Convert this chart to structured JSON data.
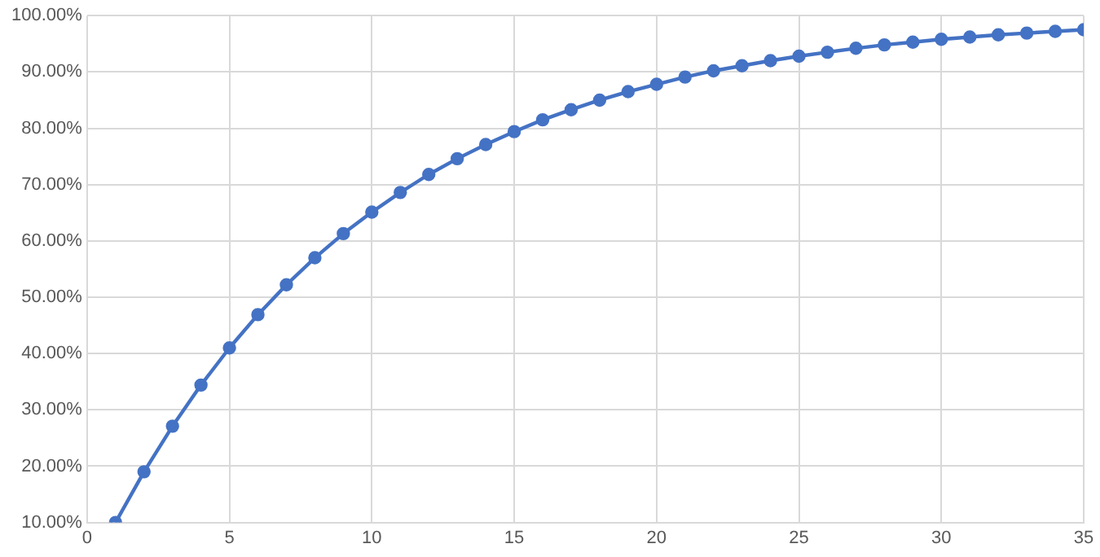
{
  "chart_data": {
    "type": "line",
    "x": [
      1,
      2,
      3,
      4,
      5,
      6,
      7,
      8,
      9,
      10,
      11,
      12,
      13,
      14,
      15,
      16,
      17,
      18,
      19,
      20,
      21,
      22,
      23,
      24,
      25,
      26,
      27,
      28,
      29,
      30,
      31,
      32,
      33,
      34,
      35
    ],
    "series": [
      {
        "color": "#4472c4",
        "values": [
          10,
          19,
          27.1,
          34.4,
          41,
          46.9,
          52.2,
          57,
          61.3,
          65.1,
          68.6,
          71.8,
          74.6,
          77.1,
          79.4,
          81.5,
          83.3,
          85,
          86.5,
          87.8,
          89.1,
          90.2,
          91.1,
          92,
          92.8,
          93.5,
          94.2,
          94.8,
          95.3,
          95.8,
          96.2,
          96.6,
          96.9,
          97.2,
          97.5
        ]
      }
    ],
    "xlim": [
      0,
      35
    ],
    "xticks": [
      0,
      5,
      10,
      15,
      20,
      25,
      30,
      35
    ],
    "ylim": [
      10,
      100
    ],
    "yticks": [
      {
        "value": 10,
        "label": "10.00%"
      },
      {
        "value": 20,
        "label": "20.00%"
      },
      {
        "value": 30,
        "label": "30.00%"
      },
      {
        "value": 40,
        "label": "40.00%"
      },
      {
        "value": 50,
        "label": "50.00%"
      },
      {
        "value": 60,
        "label": "60.00%"
      },
      {
        "value": 70,
        "label": "70.00%"
      },
      {
        "value": 80,
        "label": "80.00%"
      },
      {
        "value": 90,
        "label": "90.00%"
      },
      {
        "value": 100,
        "label": "100.00%"
      }
    ],
    "grid": true,
    "legend": false,
    "marker": "circle",
    "line_style": "solid"
  }
}
